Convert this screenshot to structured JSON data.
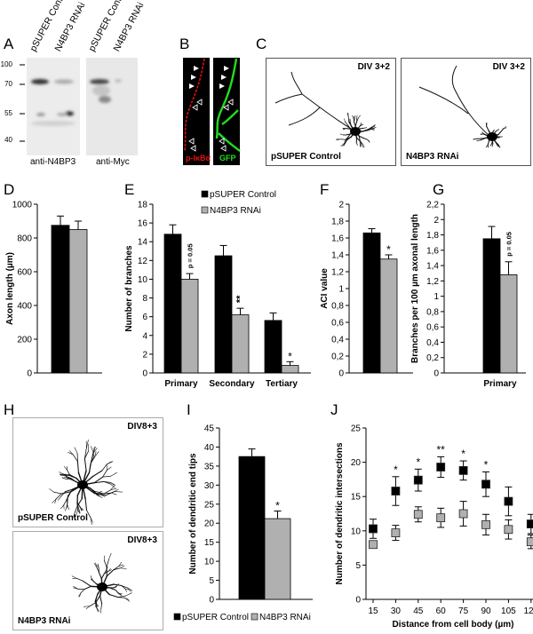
{
  "panel_labels": {
    "A": "A",
    "B": "B",
    "C": "C",
    "D": "D",
    "E": "E",
    "F": "F",
    "G": "G",
    "H": "H",
    "I": "I",
    "J": "J"
  },
  "blot": {
    "lanes": [
      "pSUPER Control",
      "N4BP3 RNAi",
      "pSUPER Control",
      "N4BP3 RNAi"
    ],
    "markers": [
      "100",
      "70",
      "55",
      "40"
    ],
    "captions": [
      "anti-N4BP3",
      "anti-Myc"
    ]
  },
  "stain": {
    "left": "p-IκBα",
    "right": "GFP"
  },
  "morphology_c": {
    "left": {
      "tag": "DIV 3+2",
      "name": "pSUPER Control"
    },
    "right": {
      "tag": "DIV 3+2",
      "name": "N4BP3 RNAi"
    }
  },
  "morphology_h": {
    "top": {
      "tag": "DIV8+3",
      "name": "pSUPER Control"
    },
    "bottom": {
      "tag": "DIV8+3",
      "name": "N4BP3 RNAi"
    }
  },
  "colors": {
    "control": "#000000",
    "rnai": "#b0b0b0",
    "red_stain": "#e01010",
    "green_stain": "#22dd22"
  },
  "chart_data": [
    {
      "panel": "D",
      "type": "bar",
      "title": "",
      "xlabel": "",
      "ylabel": "Axon length (µm)",
      "ylim": [
        0,
        1000
      ],
      "yticks": [
        "0",
        "200",
        "400",
        "600",
        "800",
        "1000"
      ],
      "categories": [
        ""
      ],
      "series": [
        {
          "name": "pSUPER Control",
          "values": [
            875
          ],
          "errors": [
            55
          ]
        },
        {
          "name": "N4BP3 RNAi",
          "values": [
            850
          ],
          "errors": [
            50
          ]
        }
      ],
      "annotations": []
    },
    {
      "panel": "E",
      "type": "bar",
      "title": "",
      "xlabel": "",
      "ylabel": "Number of branches",
      "ylim": [
        0,
        18
      ],
      "yticks": [
        "0",
        "2",
        "4",
        "6",
        "8",
        "10",
        "12",
        "14",
        "16",
        "18"
      ],
      "categories": [
        "Primary",
        "Secondary",
        "Tertiary"
      ],
      "series": [
        {
          "name": "pSUPER Control",
          "values": [
            14.8,
            12.5,
            5.6
          ],
          "errors": [
            1.0,
            1.1,
            0.8
          ]
        },
        {
          "name": "N4BP3 RNAi",
          "values": [
            10.0,
            6.2,
            0.8
          ],
          "errors": [
            0.6,
            0.7,
            0.4
          ]
        }
      ],
      "legend": [
        "pSUPER Control",
        "N4BP3 RNAi"
      ],
      "legend_position": "top-right",
      "annotations": [
        {
          "category": 0,
          "text": "p = 0.05",
          "rotated": true
        },
        {
          "category": 1,
          "text": "**",
          "rotated": true
        },
        {
          "category": 2,
          "text": "*",
          "rotated": false
        }
      ]
    },
    {
      "panel": "F",
      "type": "bar",
      "title": "",
      "xlabel": "",
      "ylabel": "ACI value",
      "ylim": [
        0,
        2
      ],
      "yticks": [
        "0",
        "0,2",
        "0,4",
        "0,6",
        "0,8",
        "1",
        "1,2",
        "1,4",
        "1,6",
        "1,8",
        "2"
      ],
      "categories": [
        ""
      ],
      "series": [
        {
          "name": "pSUPER Control",
          "values": [
            1.66
          ],
          "errors": [
            0.05
          ]
        },
        {
          "name": "N4BP3 RNAi",
          "values": [
            1.35
          ],
          "errors": [
            0.05
          ]
        }
      ],
      "annotations": [
        {
          "category": 0,
          "text": "*",
          "rotated": false
        }
      ]
    },
    {
      "panel": "G",
      "type": "bar",
      "title": "",
      "xlabel": "",
      "ylabel": "Branches per 100 µm axonal length",
      "ylim": [
        0,
        2.2
      ],
      "yticks": [
        "0",
        "0,2",
        "0,4",
        "0,6",
        "0,8",
        "1",
        "1,2",
        "1,4",
        "1,6",
        "1,8",
        "2",
        "2,2"
      ],
      "categories": [
        "Primary"
      ],
      "series": [
        {
          "name": "pSUPER Control",
          "values": [
            1.75
          ],
          "errors": [
            0.16
          ]
        },
        {
          "name": "N4BP3 RNAi",
          "values": [
            1.28
          ],
          "errors": [
            0.17
          ]
        }
      ],
      "annotations": [
        {
          "category": 0,
          "text": "p = 0.05",
          "rotated": true
        }
      ]
    },
    {
      "panel": "I",
      "type": "bar",
      "title": "",
      "xlabel": "",
      "ylabel": "Number of dendritic end tips",
      "ylim": [
        0,
        45
      ],
      "yticks": [
        "0",
        "5",
        "10",
        "15",
        "20",
        "25",
        "30",
        "35",
        "40",
        "45"
      ],
      "categories": [
        ""
      ],
      "series": [
        {
          "name": "pSUPER Control",
          "values": [
            37.5
          ],
          "errors": [
            2.0
          ]
        },
        {
          "name": "N4BP3 RNAi",
          "values": [
            21.2
          ],
          "errors": [
            2.0
          ]
        }
      ],
      "legend": [
        "pSUPER Control",
        "N4BP3 RNAi"
      ],
      "legend_position": "bottom",
      "annotations": [
        {
          "category": 0,
          "text": "*",
          "rotated": false
        }
      ]
    },
    {
      "panel": "J",
      "type": "scatter",
      "title": "",
      "xlabel": "Distance from cell body (µm)",
      "ylabel": "Number of dendritic intersections",
      "ylim": [
        0,
        25
      ],
      "yticks": [
        "0",
        "5",
        "10",
        "15",
        "20",
        "25"
      ],
      "x": [
        "15",
        "30",
        "45",
        "60",
        "75",
        "90",
        "105",
        "120"
      ],
      "series": [
        {
          "name": "pSUPER Control",
          "values": [
            10.3,
            15.8,
            17.4,
            19.3,
            18.8,
            16.8,
            14.3,
            11.0
          ],
          "errors": [
            1.4,
            2.1,
            1.6,
            1.5,
            1.4,
            1.8,
            2.1,
            1.4
          ]
        },
        {
          "name": "N4BP3 RNAi",
          "values": [
            8.0,
            9.7,
            12.4,
            11.9,
            12.5,
            10.9,
            10.2,
            8.4
          ],
          "errors": [
            0.5,
            1.1,
            1.1,
            1.4,
            1.8,
            1.5,
            1.4,
            1.0
          ]
        }
      ],
      "significance": [
        "",
        "*",
        "*",
        "**",
        "*",
        "*",
        "",
        ""
      ]
    }
  ]
}
